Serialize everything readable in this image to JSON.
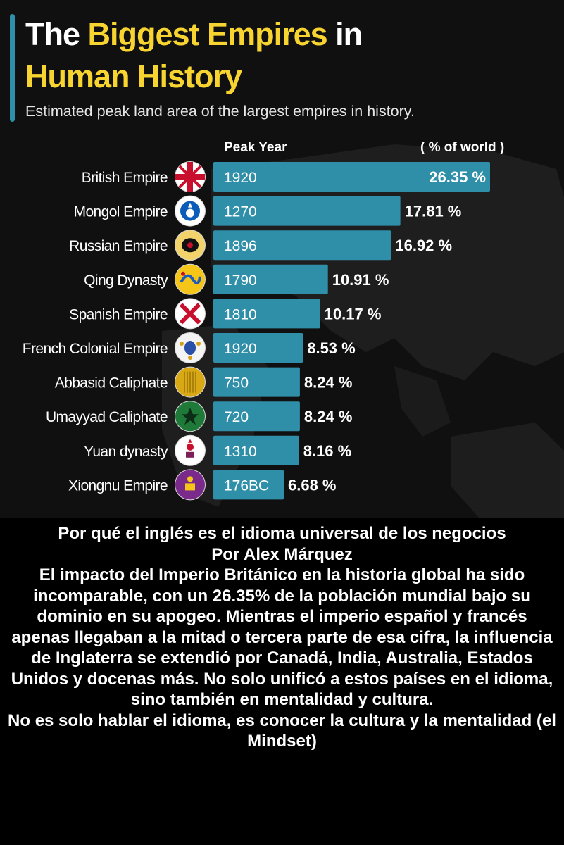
{
  "header": {
    "title_part1": "The",
    "title_part2": "Biggest Empires",
    "title_part3": "in",
    "title_line2": "Human History",
    "subtitle": "Estimated peak land area of the largest empires in history."
  },
  "colors": {
    "bar": "#2f8fa8",
    "title_accent": "#f7d430",
    "background": "#101010"
  },
  "chart_data": {
    "type": "bar",
    "orientation": "horizontal",
    "column_headers": {
      "peak_year": "Peak Year",
      "percent": "( % of world )"
    },
    "value_suffix": " %",
    "categories": [
      "British Empire",
      "Mongol Empire",
      "Russian Empire",
      "Qing Dynasty",
      "Spanish Empire",
      "French Colonial Empire",
      "Abbasid Caliphate",
      "Umayyad Caliphate",
      "Yuan dynasty",
      "Xiongnu Empire"
    ],
    "peak_years": [
      "1920",
      "1270",
      "1896",
      "1790",
      "1810",
      "1920",
      "750",
      "720",
      "1310",
      "176BC"
    ],
    "values": [
      26.35,
      17.81,
      16.92,
      10.91,
      10.17,
      8.53,
      8.24,
      8.24,
      8.16,
      6.68
    ],
    "flag_icons": [
      "union-jack-flag-icon",
      "mongol-flag-icon",
      "russian-eagle-flag-icon",
      "qing-dragon-flag-icon",
      "cross-of-burgundy-flag-icon",
      "french-royal-flag-icon",
      "abbasid-flag-icon",
      "umayyad-flag-icon",
      "yuan-flag-icon",
      "xiongnu-soyombo-flag-icon"
    ]
  },
  "article": {
    "headline": "Por qué el inglés es el idioma universal de los negocios",
    "byline": "Por Alex Márquez",
    "body": "El impacto del Imperio Británico en la historia global ha sido incomparable, con un 26.35% de la población mundial bajo su dominio en su apogeo. Mientras el imperio español y francés apenas llegaban a la mitad o tercera parte de esa cifra, la influencia de Inglaterra se extendió por Canadá, India, Australia, Estados Unidos y docenas más. No solo unificó a estos países en el idioma, sino también en mentalidad y cultura.",
    "closing": "No es solo hablar el idioma, es conocer la cultura y la mentalidad (el Mindset)"
  }
}
